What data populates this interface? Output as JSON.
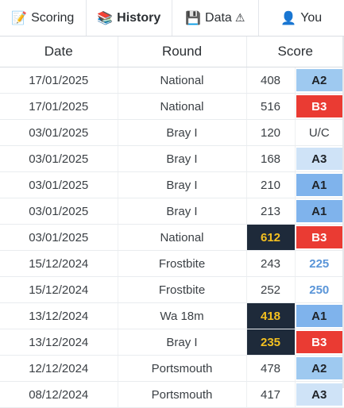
{
  "tabs": [
    {
      "icon": "📝",
      "icon_name": "memo-icon",
      "label": "Scoring",
      "active": false
    },
    {
      "icon": "📚",
      "icon_name": "books-icon",
      "label": "History",
      "active": true
    },
    {
      "icon": "💾",
      "icon_name": "floppy-disk-icon",
      "label": "Data",
      "extra": "⚠",
      "active": false
    },
    {
      "icon": "👤",
      "icon_name": "user-icon",
      "label": "You",
      "active": false
    }
  ],
  "table": {
    "headers": {
      "date": "Date",
      "round": "Round",
      "score": "Score"
    },
    "rows": [
      {
        "date": "17/01/2025",
        "round": "National",
        "score": "408",
        "highlight": false,
        "grade": "A2",
        "grade_class": "A2"
      },
      {
        "date": "17/01/2025",
        "round": "National",
        "score": "516",
        "highlight": false,
        "grade": "B3",
        "grade_class": "B3"
      },
      {
        "date": "03/01/2025",
        "round": "Bray I",
        "score": "120",
        "highlight": false,
        "grade": "U/C",
        "grade_class": "UC"
      },
      {
        "date": "03/01/2025",
        "round": "Bray I",
        "score": "168",
        "highlight": false,
        "grade": "A3",
        "grade_class": "A3"
      },
      {
        "date": "03/01/2025",
        "round": "Bray I",
        "score": "210",
        "highlight": false,
        "grade": "A1",
        "grade_class": "A1"
      },
      {
        "date": "03/01/2025",
        "round": "Bray I",
        "score": "213",
        "highlight": false,
        "grade": "A1",
        "grade_class": "A1"
      },
      {
        "date": "03/01/2025",
        "round": "National",
        "score": "612",
        "highlight": true,
        "grade": "B3",
        "grade_class": "B3"
      },
      {
        "date": "15/12/2024",
        "round": "Frostbite",
        "score": "243",
        "highlight": false,
        "grade": "225",
        "grade_class": "num"
      },
      {
        "date": "15/12/2024",
        "round": "Frostbite",
        "score": "252",
        "highlight": false,
        "grade": "250",
        "grade_class": "num"
      },
      {
        "date": "13/12/2024",
        "round": "Wa 18m",
        "score": "418",
        "highlight": true,
        "grade": "A1",
        "grade_class": "A1"
      },
      {
        "date": "13/12/2024",
        "round": "Bray I",
        "score": "235",
        "highlight": true,
        "grade": "B3",
        "grade_class": "B3"
      },
      {
        "date": "12/12/2024",
        "round": "Portsmouth",
        "score": "478",
        "highlight": false,
        "grade": "A2",
        "grade_class": "A2"
      },
      {
        "date": "08/12/2024",
        "round": "Portsmouth",
        "score": "417",
        "highlight": false,
        "grade": "A3",
        "grade_class": "A3"
      }
    ]
  },
  "colors": {
    "highlight_bg": "#1e2a3a",
    "highlight_text": "#f4c020",
    "grade_A1": "#7fb3ec",
    "grade_A2": "#9ec9f0",
    "grade_A3": "#cfe3f7",
    "grade_B3": "#ea3b33",
    "handicap_text": "#5a95d8"
  }
}
